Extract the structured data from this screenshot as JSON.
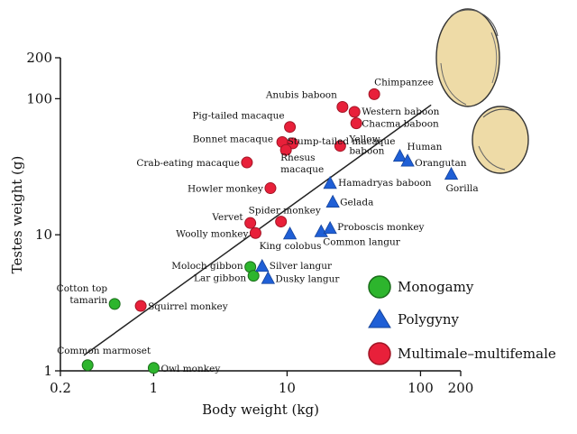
{
  "chart_data": {
    "type": "scatter",
    "title": "",
    "xlabel": "Body weight (kg)",
    "ylabel": "Testes weight (g)",
    "x_scale": "log",
    "y_scale": "log",
    "xlim": [
      0.2,
      200
    ],
    "ylim": [
      1,
      200
    ],
    "x_ticks": [
      {
        "value": 0.2,
        "label": "0.2"
      },
      {
        "value": 1,
        "label": "1"
      },
      {
        "value": 10,
        "label": "10"
      },
      {
        "value": 100,
        "label": "100"
      },
      {
        "value": 200,
        "label": "200"
      }
    ],
    "y_ticks": [
      {
        "value": 1,
        "label": "1"
      },
      {
        "value": 10,
        "label": "10"
      },
      {
        "value": 100,
        "label": "100"
      },
      {
        "value": 200,
        "label": "200"
      }
    ],
    "grid": false,
    "legend_position": "bottom-right",
    "colors": {
      "monogamy": "#2db52d",
      "polygyny": "#1f5fd6",
      "multimale": "#e8203a",
      "line": "#222222"
    },
    "series": [
      {
        "name": "Monogamy",
        "marker": "circle",
        "points": [
          {
            "label": "Cotton top tamarin",
            "x": 0.51,
            "y": 3.1
          },
          {
            "label": "Common marmoset",
            "x": 0.32,
            "y": 1.1
          },
          {
            "label": "Owl monkey",
            "x": 1.0,
            "y": 1.05
          },
          {
            "label": "Moloch gibbon",
            "x": 5.3,
            "y": 5.8
          },
          {
            "label": "Lar gibbon",
            "x": 5.6,
            "y": 5.0
          }
        ]
      },
      {
        "name": "Polygyny",
        "marker": "triangle",
        "points": [
          {
            "label": "Silver langur",
            "x": 6.5,
            "y": 5.9
          },
          {
            "label": "Dusky langur",
            "x": 7.2,
            "y": 4.8
          },
          {
            "label": "King colobus",
            "x": 10.5,
            "y": 10.2
          },
          {
            "label": "Common langur",
            "x": 18,
            "y": 10.6
          },
          {
            "label": "Proboscis monkey",
            "x": 21,
            "y": 11.2
          },
          {
            "label": "Gelada",
            "x": 22,
            "y": 17.5
          },
          {
            "label": "Hamadryas baboon",
            "x": 21,
            "y": 24
          },
          {
            "label": "Human",
            "x": 70,
            "y": 38
          },
          {
            "label": "Orangutan",
            "x": 80,
            "y": 35
          },
          {
            "label": "Gorilla",
            "x": 170,
            "y": 28
          }
        ]
      },
      {
        "name": "Multimale–multifemale",
        "marker": "circle",
        "points": [
          {
            "label": "Chimpanzee",
            "x": 45,
            "y": 108
          },
          {
            "label": "Anubis baboon",
            "x": 26,
            "y": 87
          },
          {
            "label": "Western baboon",
            "x": 32,
            "y": 80
          },
          {
            "label": "Chacma baboon",
            "x": 33,
            "y": 66
          },
          {
            "label": "Pig-tailed macaque",
            "x": 10.5,
            "y": 62
          },
          {
            "label": "Bonnet macaque",
            "x": 9.2,
            "y": 48
          },
          {
            "label": "Stump-tailed macaque",
            "x": 11,
            "y": 47
          },
          {
            "label": "Rhesus macaque",
            "x": 9.8,
            "y": 42
          },
          {
            "label": "Yellow baboon",
            "x": 25,
            "y": 45
          },
          {
            "label": "Crab-eating macaque",
            "x": 5,
            "y": 34
          },
          {
            "label": "Howler monkey",
            "x": 7.5,
            "y": 22
          },
          {
            "label": "Spider monkey",
            "x": 9,
            "y": 12.5
          },
          {
            "label": "Vervet",
            "x": 5.3,
            "y": 12.2
          },
          {
            "label": "Woolly monkey",
            "x": 5.8,
            "y": 10.3
          },
          {
            "label": "Squirrel monkey",
            "x": 0.8,
            "y": 3.0
          }
        ]
      }
    ],
    "trend_line": {
      "x": [
        0.3,
        120
      ],
      "y": [
        1.3,
        90
      ]
    },
    "legend": [
      {
        "label": "Monogamy",
        "marker": "circle",
        "color": "#2db52d"
      },
      {
        "label": "Polygyny",
        "marker": "triangle",
        "color": "#1f5fd6"
      },
      {
        "label": "Multimale–multifemale",
        "marker": "circle",
        "color": "#e8203a"
      }
    ]
  },
  "illustrations": [
    {
      "name": "large-testis-icon",
      "fill": "#eedba7"
    },
    {
      "name": "small-testis-icon",
      "fill": "#eedba7"
    }
  ]
}
